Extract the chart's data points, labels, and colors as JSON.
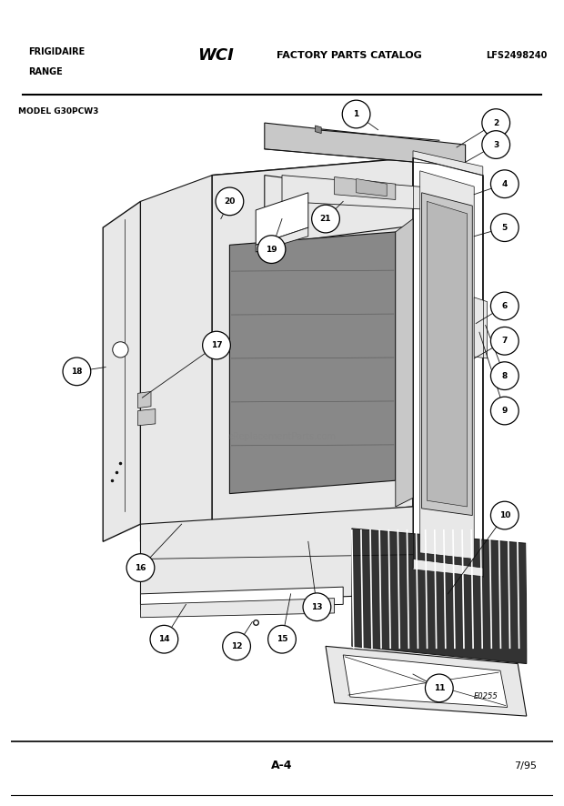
{
  "bg_color": "#ffffff",
  "top_bar_color": "#1a1a1a",
  "title_left_1": "FRIGIDAIRE",
  "title_left_2": "RANGE",
  "title_center": "FACTORY PARTS CATALOG",
  "title_right": "LFS2498240",
  "model_label": "MODEL G30PCW3",
  "page_label": "A-4",
  "date_label": "7/95",
  "diagram_code": "E0255",
  "gray_light": "#e8e8e8",
  "gray_mid": "#c8c8c8",
  "gray_dark": "#888888",
  "gray_fill": "#d0d0d0",
  "line_color": "#111111"
}
